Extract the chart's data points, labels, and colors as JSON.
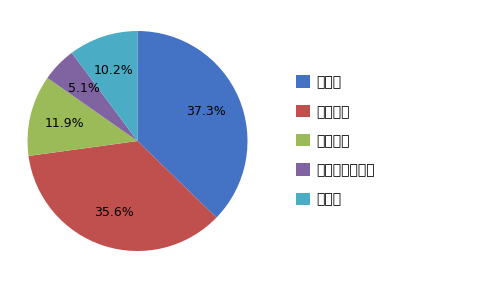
{
  "labels": [
    "大企業",
    "中小企業",
    "教育機関",
    "公的機関・団体",
    "その他"
  ],
  "values": [
    37.3,
    35.6,
    11.9,
    5.1,
    10.2
  ],
  "colors": [
    "#4472C4",
    "#C0504D",
    "#9BBB59",
    "#8064A2",
    "#4BACC6"
  ],
  "startangle": 90,
  "legend_fontsize": 10,
  "autopct_fontsize": 9,
  "pctdistance": 0.68
}
